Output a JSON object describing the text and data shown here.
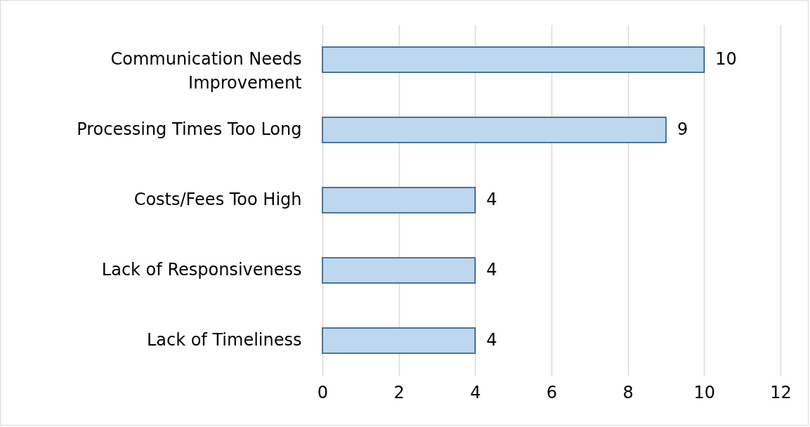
{
  "chart_data": {
    "type": "bar",
    "orientation": "horizontal",
    "categories": [
      "Communication Needs Improvement",
      "Processing Times Too Long",
      "Costs/Fees Too High",
      "Lack of Responsiveness",
      "Lack of Timeliness"
    ],
    "values": [
      10,
      9,
      4,
      4,
      4
    ],
    "color": "#bdd7ee",
    "xlim": [
      0,
      12
    ],
    "xticks": [
      0,
      2,
      4,
      6,
      8,
      10,
      12
    ],
    "grid": "x",
    "data_labels": true
  }
}
